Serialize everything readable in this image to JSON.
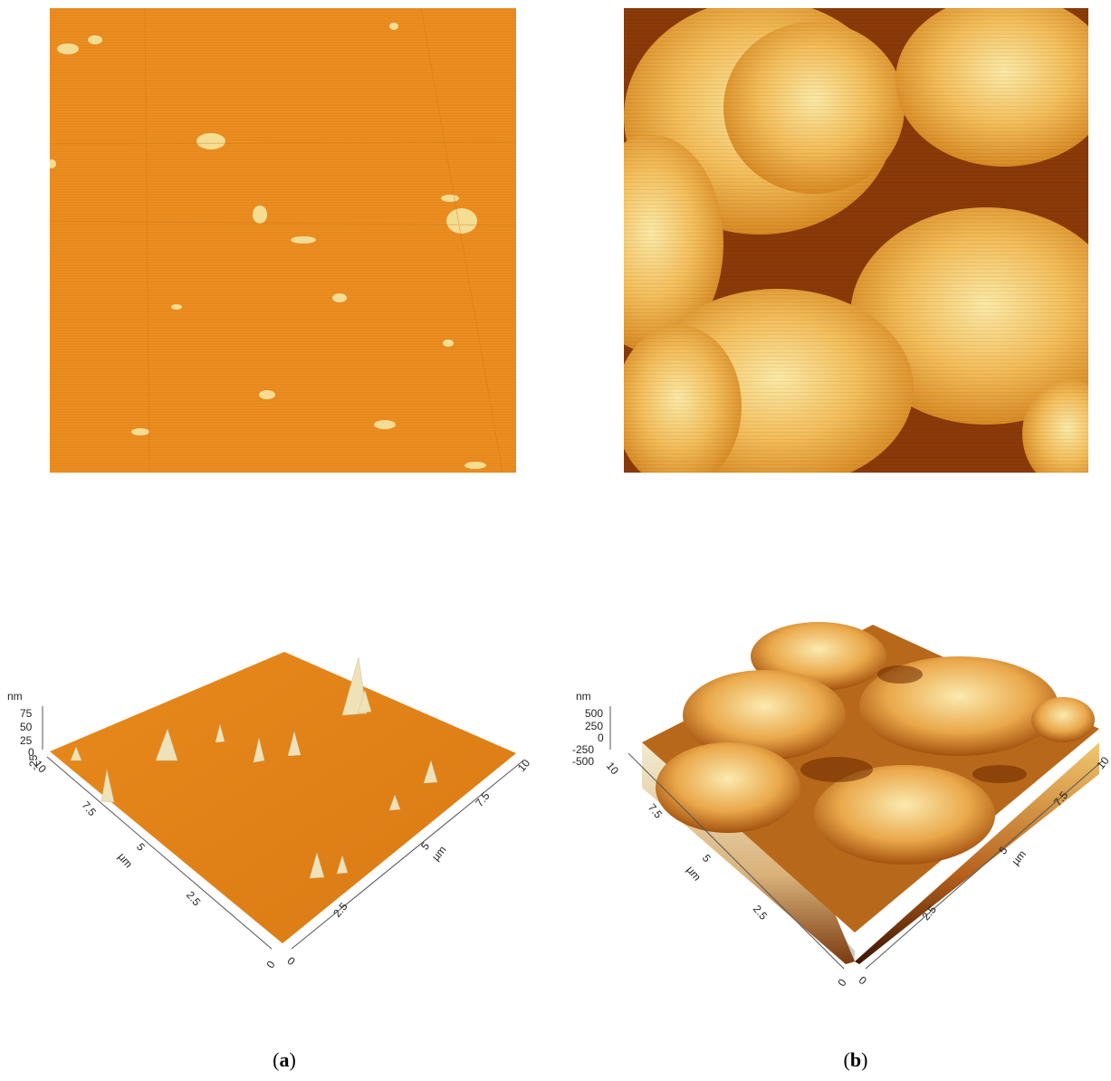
{
  "panels": [
    {
      "id": "a",
      "caption_open": "(",
      "caption_letter": "a",
      "caption_close": ")",
      "colors": {
        "base": "#e8891c",
        "light": "#f6e7a0",
        "dark": "#c86a0e"
      },
      "axes_3d": {
        "z_unit": "nm",
        "z_ticks": [
          "75",
          "50",
          "25",
          "0",
          "-25"
        ],
        "y_unit": "µm",
        "y_ticks": [
          "0",
          "2.5",
          "5",
          "7.5",
          "10"
        ],
        "x_unit": "µm",
        "x_ticks": [
          "0",
          "2.5",
          "5",
          "7.5",
          "10"
        ]
      }
    },
    {
      "id": "b",
      "caption_open": "(",
      "caption_letter": "b",
      "caption_close": ")",
      "colors": {
        "base": "#e0902a",
        "light": "#fbe9a6",
        "dark": "#7a2a00"
      },
      "axes_3d": {
        "z_unit": "nm",
        "z_ticks": [
          "500",
          "250",
          "0",
          "-250",
          "-500"
        ],
        "y_unit": "µm",
        "y_ticks": [
          "0",
          "2.5",
          "5",
          "7.5",
          "10"
        ],
        "x_unit": "µm",
        "x_ticks": [
          "0",
          "2.5",
          "5",
          "7.5",
          "10"
        ]
      }
    }
  ]
}
